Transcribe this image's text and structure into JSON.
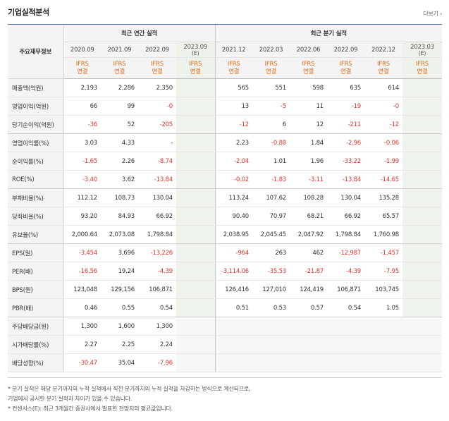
{
  "header": {
    "title": "기업실적분석",
    "more_link": "더보기 ›"
  },
  "table": {
    "label_header": "주요재무정보",
    "group_annual": "최근 연간 실적",
    "group_quarter": "최근 분기 실적",
    "periods": [
      "2020.09",
      "2021.09",
      "2022.09",
      "2023.09\n(E)",
      "2021.12",
      "2022.03",
      "2022.06",
      "2022.09",
      "2022.12",
      "2023.03\n(E)"
    ],
    "period_top": [
      "2020.09",
      "2021.09",
      "2022.09",
      "2023.09",
      "2021.12",
      "2022.03",
      "2022.06",
      "2022.09",
      "2022.12",
      "2023.03"
    ],
    "period_sub": [
      "",
      "",
      "",
      "(E)",
      "",
      "",
      "",
      "",
      "",
      "(E)"
    ],
    "basis_top": [
      "IFRS",
      "IFRS",
      "IFRS",
      "IFRS",
      "IFRS",
      "IFRS",
      "IFRS",
      "IFRS",
      "IFRS",
      "IFRS"
    ],
    "basis_sub": [
      "연결",
      "연결",
      "연결",
      "연결",
      "연결",
      "연결",
      "연결",
      "연결",
      "연결",
      "연결"
    ],
    "rows": [
      {
        "label": "매출액(억원)",
        "values": [
          "2,193",
          "2,286",
          "2,350",
          "",
          "565",
          "551",
          "598",
          "635",
          "614",
          ""
        ]
      },
      {
        "label": "영업이익(억원)",
        "values": [
          "66",
          "99",
          "-0",
          "",
          "13",
          "-5",
          "11",
          "-19",
          "-0",
          ""
        ]
      },
      {
        "label": "당기순이익(억원)",
        "values": [
          "-36",
          "52",
          "-205",
          "",
          "-12",
          "6",
          "12",
          "-211",
          "-12",
          ""
        ]
      },
      {
        "label": "영업이익률(%)",
        "values": [
          "3.03",
          "4.33",
          "-",
          "",
          "2.23",
          "-0.88",
          "1.84",
          "-2.96",
          "-0.06",
          ""
        ]
      },
      {
        "label": "순이익률(%)",
        "values": [
          "-1.65",
          "2.26",
          "-8.74",
          "",
          "-2.04",
          "1.01",
          "1.96",
          "-33.22",
          "-1.99",
          ""
        ]
      },
      {
        "label": "ROE(%)",
        "values": [
          "-3.40",
          "3.62",
          "-13.84",
          "",
          "-0.02",
          "-1.83",
          "-3.11",
          "-13.84",
          "-14.65",
          ""
        ]
      },
      {
        "label": "부채비율(%)",
        "values": [
          "112.12",
          "108.73",
          "130.04",
          "",
          "113.24",
          "107.62",
          "108.28",
          "130.04",
          "135.28",
          ""
        ]
      },
      {
        "label": "당좌비율(%)",
        "values": [
          "93.20",
          "84.93",
          "66.92",
          "",
          "90.40",
          "70.97",
          "68.21",
          "66.92",
          "65.57",
          ""
        ]
      },
      {
        "label": "유보율(%)",
        "values": [
          "2,000.64",
          "2,073.08",
          "1,798.84",
          "",
          "2,038.95",
          "2,045.45",
          "2,047.92",
          "1,798.84",
          "1,760.98",
          ""
        ]
      },
      {
        "label": "EPS(원)",
        "values": [
          "-3,454",
          "3,696",
          "-13,226",
          "",
          "-964",
          "263",
          "462",
          "-12,987",
          "-1,457",
          ""
        ]
      },
      {
        "label": "PER(배)",
        "values": [
          "-16.56",
          "19.24",
          "-4.39",
          "",
          "-3,114.06",
          "-35.53",
          "-21.87",
          "-4.39",
          "-7.95",
          ""
        ]
      },
      {
        "label": "BPS(원)",
        "values": [
          "123,048",
          "129,156",
          "106,871",
          "",
          "126,416",
          "127,010",
          "124,419",
          "106,871",
          "103,745",
          ""
        ]
      },
      {
        "label": "PBR(배)",
        "values": [
          "0.46",
          "0.55",
          "0.54",
          "",
          "0.51",
          "0.53",
          "0.57",
          "0.54",
          "1.05",
          ""
        ]
      },
      {
        "label": "주당배당금(원)",
        "values": [
          "1,300",
          "1,600",
          "1,300",
          "",
          "",
          "",
          "",
          "",
          "",
          ""
        ]
      },
      {
        "label": "시가배당률(%)",
        "values": [
          "2.27",
          "2.25",
          "2.24",
          "",
          "",
          "",
          "",
          "",
          "",
          ""
        ]
      },
      {
        "label": "배당성향(%)",
        "values": [
          "-30.47",
          "35.04",
          "-7.96",
          "",
          "",
          "",
          "",
          "",
          "",
          ""
        ]
      }
    ]
  },
  "notes": {
    "line1": "* 분기 실적은 해당 분기까지의 누적 실적에서 직전 분기까지의 누적 실적을 차감하는 방식으로 계산되므로,",
    "line2": "  기업에서 공시한 분기 실적과 차이가 있을 수 있습니다.",
    "line3": "* 컨센서스(E): 최근 3개월간 증권사에서 발표한 전망치의 평균값입니다."
  },
  "colors": {
    "negative": "#e0352b",
    "basis": "#e36b1a",
    "estimate_bg": "#eef4ec",
    "header_bg": "#f4f4f4",
    "top_rule": "#4a6da7"
  }
}
